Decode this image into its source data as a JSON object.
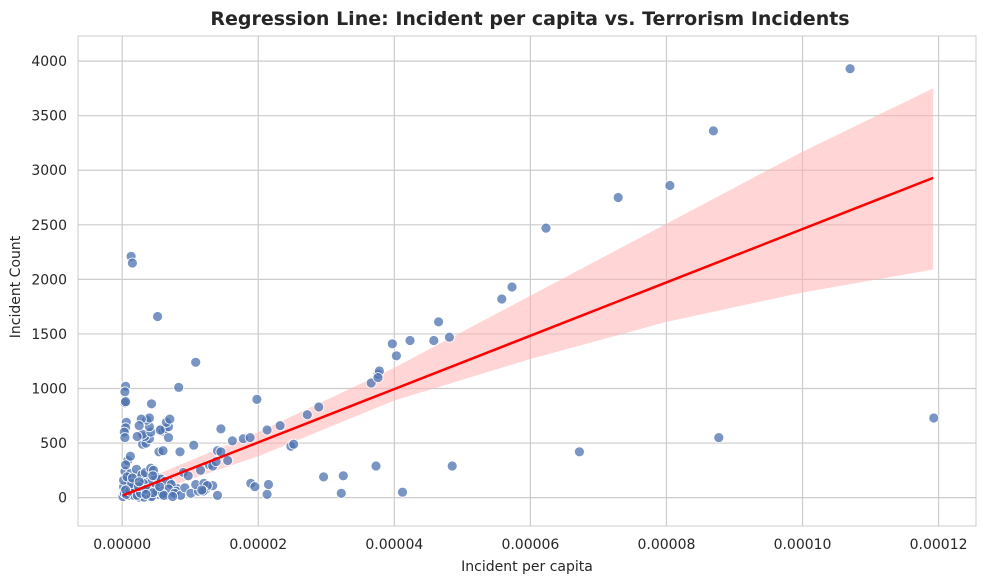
{
  "chart_data": {
    "type": "scatter",
    "title": "Regression Line: Incident per capita vs. Terrorism Incidents",
    "xlabel": "Incident per capita",
    "ylabel": "Incident Count",
    "xlim": [
      -6.5e-06,
      0.0001255
    ],
    "ylim": [
      -260,
      4230
    ],
    "x_ticks": [
      "0.00000",
      "0.00002",
      "0.00004",
      "0.00006",
      "0.00008",
      "0.00010",
      "0.00012"
    ],
    "x_tick_values": [
      0,
      2e-05,
      4e-05,
      6e-05,
      8e-05,
      0.0001,
      0.00012
    ],
    "y_ticks": [
      "0",
      "500",
      "1000",
      "1500",
      "2000",
      "2500",
      "3000",
      "3500",
      "4000"
    ],
    "y_tick_values": [
      0,
      500,
      1000,
      1500,
      2000,
      2500,
      3000,
      3500,
      4000
    ],
    "grid": true,
    "colors": {
      "background": "#ffffff",
      "grid": "#cccccc",
      "points": "#4c72b0",
      "point_edge": "#ffffff",
      "regression_line": "#ff0000",
      "confidence_band": "#ffb3b3",
      "text": "#262626"
    },
    "regression": {
      "x": [
        1e-07,
        0.0001192
      ],
      "y": [
        20,
        2930
      ]
    },
    "confidence_band": {
      "x": [
        1e-07,
        2e-05,
        4e-05,
        6e-05,
        8e-05,
        0.0001,
        0.0001192
      ],
      "upper": [
        80,
        600,
        1190,
        1850,
        2510,
        3170,
        3750
      ],
      "lower": [
        -40,
        380,
        890,
        1270,
        1610,
        1880,
        2090
      ]
    },
    "series": [
      {
        "x": [
          1e-07,
          3e-07,
          5e-07,
          8e-07,
          1e-06,
          1.3e-06,
          1.5e-06,
          1.8e-06,
          2e-06,
          2.3e-06,
          2.5e-06,
          2.8e-06,
          3e-06,
          3.3e-06,
          3.6e-06,
          3.8e-06,
          4.1e-06,
          4.4e-06,
          4.7e-06,
          5e-06,
          5.5e-06,
          6e-06,
          6.5e-06,
          7e-06,
          7.5e-06,
          8e-06,
          4e-07,
          1.2e-06,
          2.1e-06,
          2.9e-06,
          3.4e-06,
          4.2e-06,
          4.9e-06,
          5.7e-06,
          6.3e-06,
          7.2e-06,
          7.9e-06,
          2e-07,
          9e-07,
          1.7e-06,
          2.6e-06,
          3.2e-06,
          4.6e-06,
          5.3e-06,
          6.8e-06,
          7.7e-06,
          8.6e-06,
          9.2e-06,
          1.01e-05,
          1.12e-05,
          1.22e-05,
          1.33e-05,
          6e-07,
          1.1e-06,
          1.6e-06,
          2.2e-06,
          2.7e-06,
          3.1e-06,
          3.7e-06,
          4.3e-06,
          5.1e-06,
          5.9e-06,
          2e-07,
          7e-07,
          1.4e-06,
          2.4e-06,
          3.5e-06,
          4.5e-06,
          6.1e-06,
          7.4e-06,
          5e-07,
          1.5e-06,
          2.5e-06,
          3.5e-06,
          4.5e-06,
          5.5e-06,
          5e-07,
          4e-07,
          4e-07,
          5e-07,
          6e-07,
          5e-07,
          3e-07,
          4e-07,
          3e-06,
          3.5e-06,
          4e-06,
          3.3e-06,
          3e-06,
          4.2e-06,
          4e-06,
          3.6e-06,
          4e-06,
          2.8e-06,
          2.5e-06,
          2.2e-06,
          4.3e-06,
          5.8e-06,
          6e-06,
          6.3e-06,
          6.8e-06,
          6.5e-06,
          7e-06,
          6.8e-06,
          5.6e-06,
          5.4e-06,
          6e-06,
          1.05e-05,
          1.08e-05,
          8.3e-06,
          5.2e-06,
          1.3e-06,
          1.5e-06,
          8e-07,
          1.2e-06,
          5e-07,
          8.5e-06,
          9e-06,
          9.7e-06,
          1.08e-05,
          1.2e-05,
          1.25e-05,
          1.15e-05,
          1.28e-05,
          1.33e-05,
          1.38e-05,
          1.4e-05,
          1.45e-05,
          1.55e-05,
          1.62e-05,
          1.78e-05,
          1.88e-05,
          1.98e-05,
          2.13e-05,
          2.32e-05,
          2.48e-05,
          2.52e-05,
          2.72e-05,
          2.89e-05,
          1.45e-05,
          1.4e-05,
          1.19e-05,
          1.17e-05,
          1.89e-05,
          1.95e-05,
          2.13e-05,
          2.15e-05,
          2.96e-05,
          3.22e-05,
          3.25e-05,
          3.73e-05,
          4.12e-05,
          4.85e-05,
          3.66e-05,
          3.76e-05,
          3.78e-05,
          3.76e-05,
          3.97e-05,
          4.03e-05,
          4.23e-05,
          4.58e-05,
          4.65e-05,
          4.81e-05,
          5.58e-05,
          5.73e-05,
          6.23e-05,
          6.72e-05,
          7.29e-05,
          8.05e-05,
          8.69e-05,
          8.77e-05,
          0.000107,
          0.0001193
        ],
        "y": [
          10,
          40,
          80,
          120,
          20,
          60,
          150,
          30,
          90,
          200,
          5,
          110,
          50,
          160,
          25,
          70,
          130,
          15,
          45,
          95,
          180,
          60,
          20,
          140,
          35,
          85,
          240,
          220,
          260,
          210,
          230,
          270,
          190,
          170,
          150,
          120,
          60,
          100,
          140,
          20,
          50,
          5,
          250,
          30,
          80,
          40,
          20,
          90,
          40,
          60,
          70,
          110,
          30,
          60,
          100,
          20,
          40,
          130,
          80,
          10,
          55,
          35,
          160,
          190,
          130,
          100,
          75,
          45,
          20,
          10,
          70,
          180,
          145,
          30,
          200,
          100,
          1020,
          970,
          870,
          880,
          690,
          640,
          600,
          550,
          490,
          500,
          540,
          560,
          580,
          600,
          650,
          710,
          730,
          720,
          660,
          560,
          860,
          630,
          610,
          630,
          650,
          690,
          720,
          550,
          620,
          420,
          430,
          480,
          1240,
          1010,
          1660,
          2210,
          2150,
          340,
          380,
          300,
          420,
          230,
          200,
          120,
          130,
          110,
          250,
          300,
          290,
          330,
          430,
          420,
          340,
          520,
          540,
          550,
          900,
          620,
          660,
          470,
          490,
          760,
          830,
          630,
          20,
          60,
          70,
          130,
          100,
          30,
          120,
          190,
          40,
          200,
          290,
          50,
          290,
          1050,
          1130,
          1160,
          1100,
          1410,
          1300,
          1440,
          1440,
          1610,
          1470,
          1820,
          1930,
          2470,
          420,
          2750,
          2860,
          3360,
          550,
          3930,
          730
        ]
      }
    ]
  }
}
